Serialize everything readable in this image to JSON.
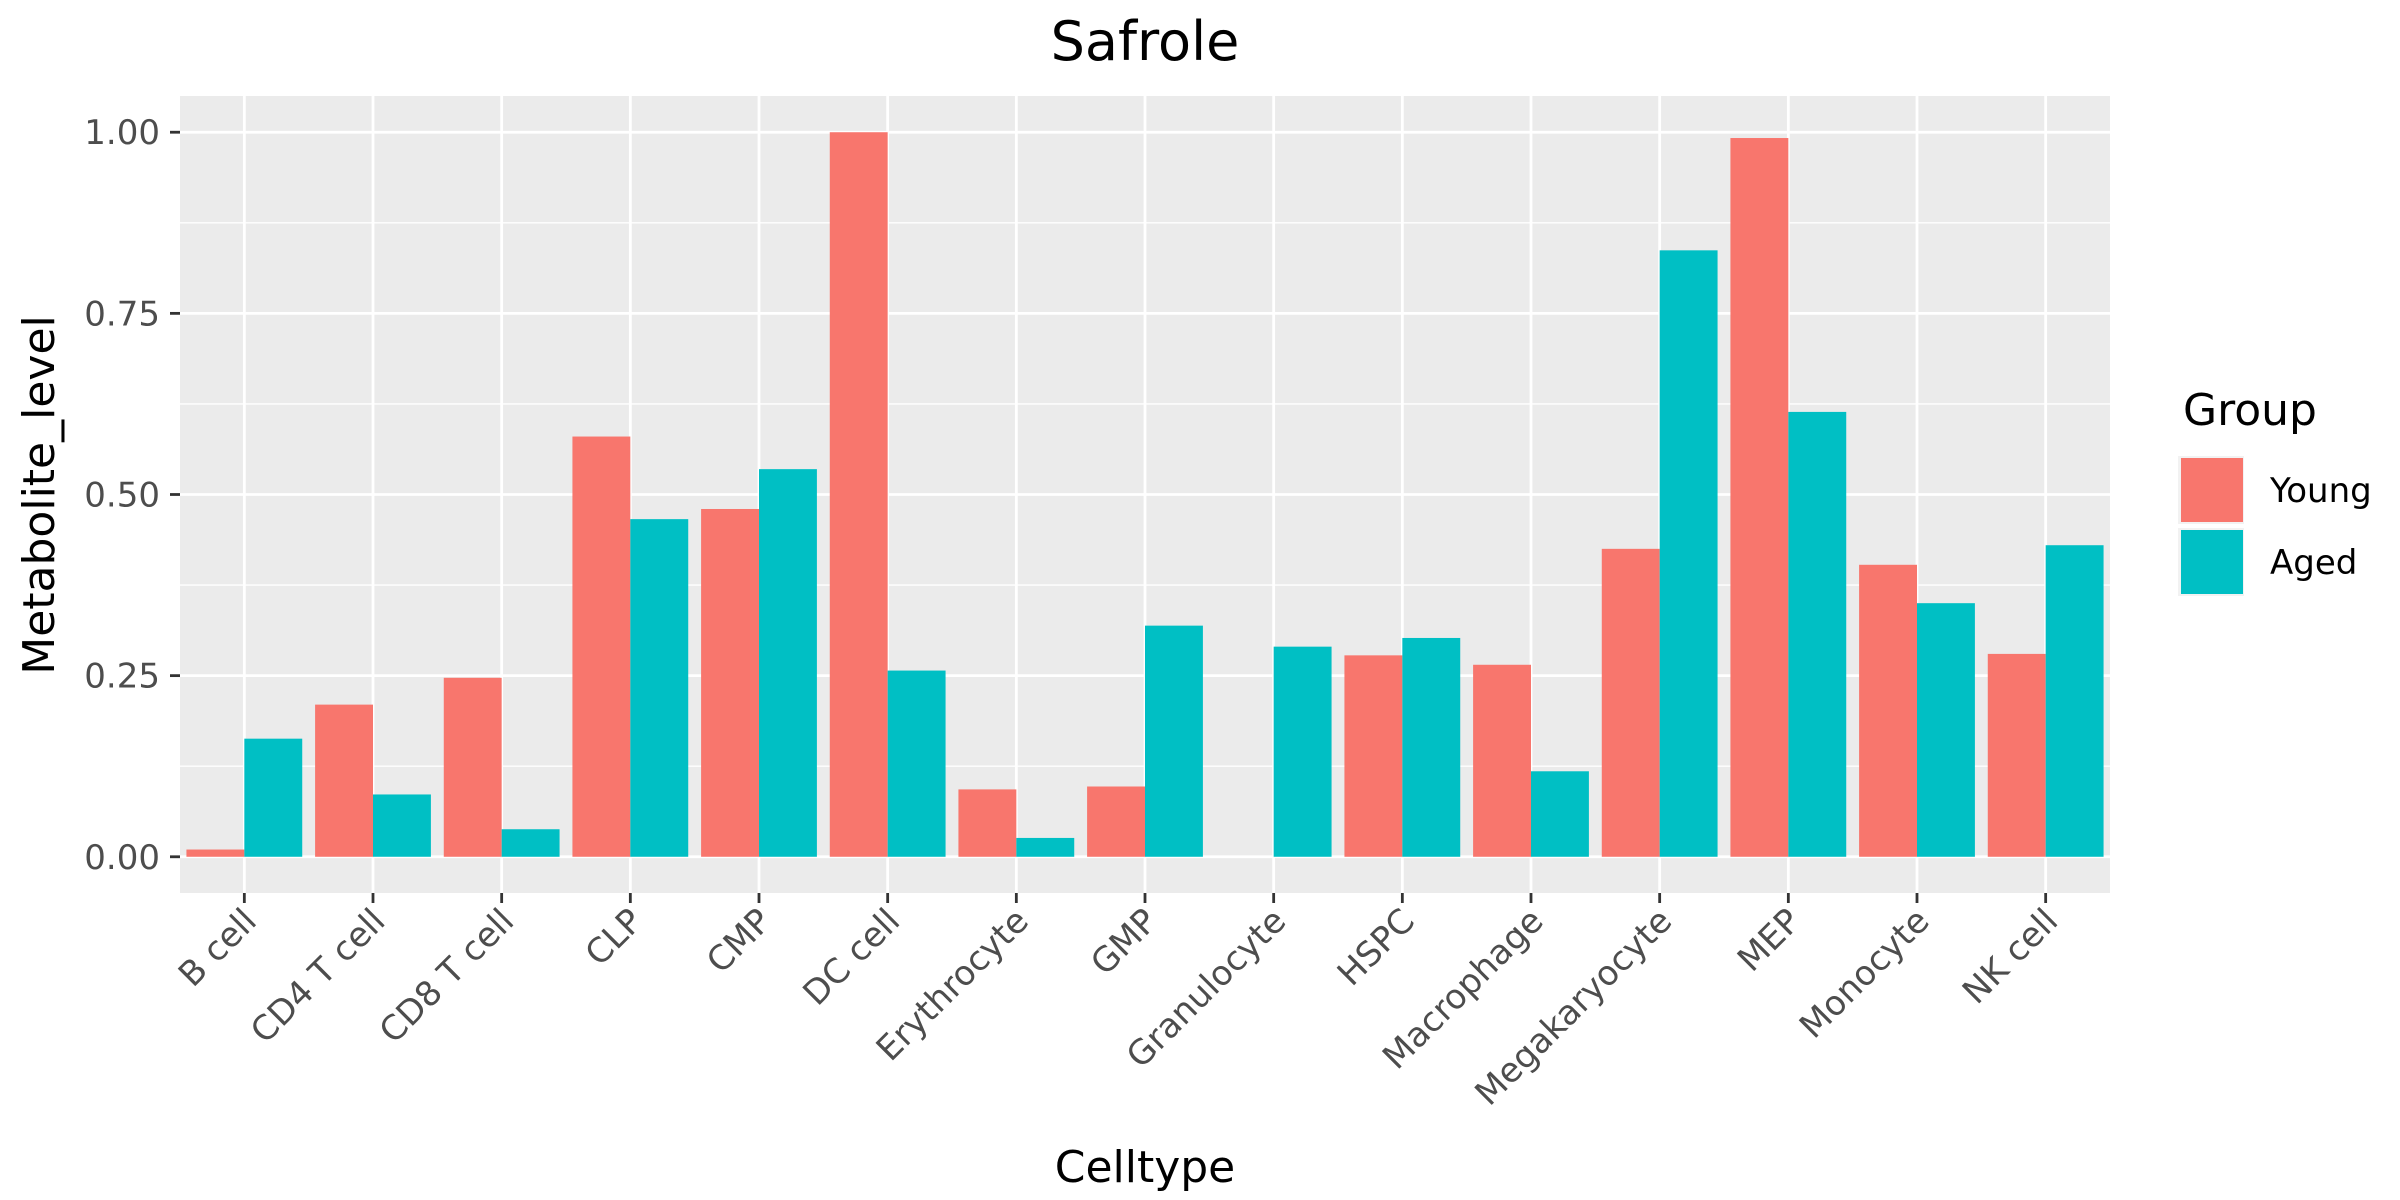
{
  "chart_data": {
    "type": "bar",
    "title": "Safrole",
    "xlabel": "Celltype",
    "ylabel": "Metabolite_level",
    "ylim": [
      -0.05,
      1.05
    ],
    "yticks": [
      "0.00",
      "0.25",
      "0.50",
      "0.75",
      "1.00"
    ],
    "ytick_values": [
      0,
      0.25,
      0.5,
      0.75,
      1.0
    ],
    "categories": [
      "B cell",
      "CD4 T cell",
      "CD8 T cell",
      "CLP",
      "CMP",
      "DC cell",
      "Erythrocyte",
      "GMP",
      "Granulocyte",
      "HSPC",
      "Macrophage",
      "Megakaryocyte",
      "MEP",
      "Monocyte",
      "NK cell"
    ],
    "series": [
      {
        "name": "Young",
        "color": "#F8766D",
        "values": [
          0.01,
          0.21,
          0.247,
          0.58,
          0.48,
          1.0,
          0.093,
          0.097,
          0.0,
          0.278,
          0.265,
          0.425,
          0.992,
          0.403,
          0.28
        ]
      },
      {
        "name": "Aged",
        "color": "#00BFC4",
        "values": [
          0.163,
          0.086,
          0.038,
          0.466,
          0.535,
          0.257,
          0.026,
          0.319,
          0.29,
          0.302,
          0.118,
          0.837,
          0.614,
          0.35,
          0.43
        ]
      }
    ],
    "legend": {
      "title": "Group",
      "position": "right"
    },
    "grid": true,
    "panel_background": "#EBEBEB"
  }
}
